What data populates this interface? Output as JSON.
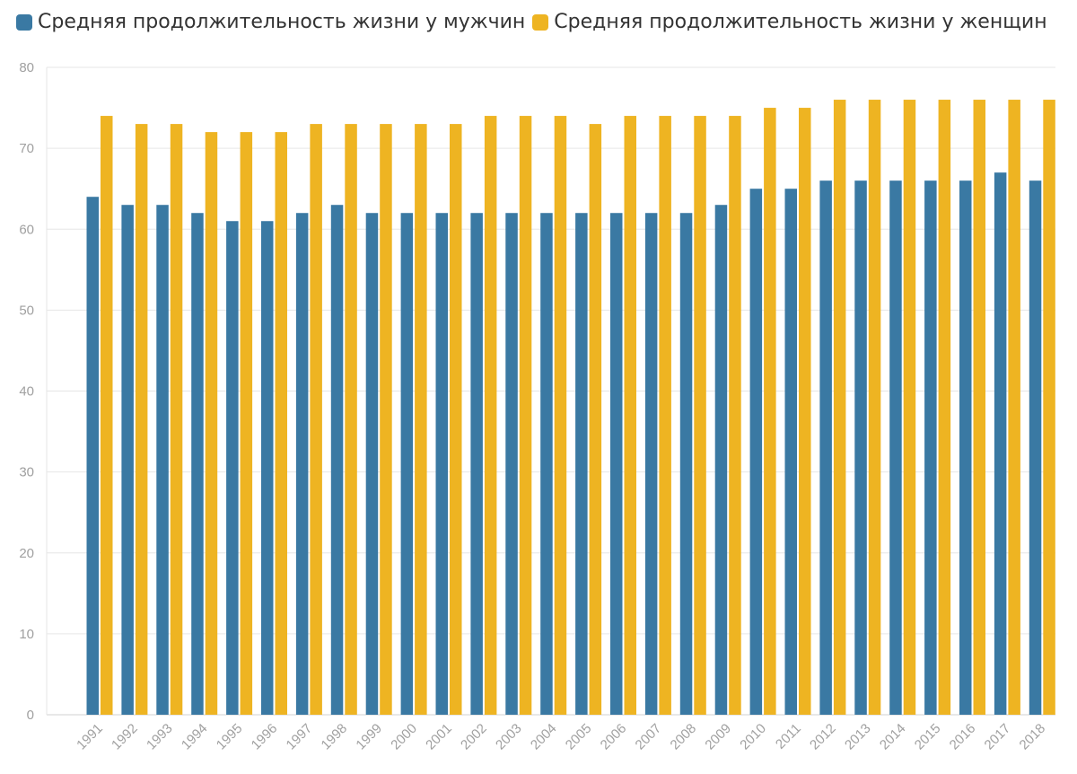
{
  "chart_data": {
    "type": "bar",
    "categories": [
      "1991",
      "1992",
      "1993",
      "1994",
      "1995",
      "1996",
      "1997",
      "1998",
      "1999",
      "2000",
      "2001",
      "2002",
      "2003",
      "2004",
      "2005",
      "2006",
      "2007",
      "2008",
      "2009",
      "2010",
      "2011",
      "2012",
      "2013",
      "2014",
      "2015",
      "2016",
      "2017",
      "2018"
    ],
    "series": [
      {
        "name": "Средняя продолжительность жизни у мужчин",
        "color": "#3a79a3",
        "values": [
          64,
          63,
          63,
          62,
          61,
          61,
          62,
          63,
          62,
          62,
          62,
          62,
          62,
          62,
          62,
          62,
          62,
          62,
          63,
          65,
          65,
          66,
          66,
          66,
          66,
          66,
          67,
          66
        ]
      },
      {
        "name": "Средняя продолжительность жизни у женщин",
        "color": "#eeb422",
        "values": [
          74,
          73,
          73,
          72,
          72,
          72,
          73,
          73,
          73,
          73,
          73,
          74,
          74,
          74,
          73,
          74,
          74,
          74,
          74,
          75,
          75,
          76,
          76,
          76,
          76,
          76,
          76,
          76
        ]
      }
    ],
    "ylim": [
      0,
      80
    ],
    "yticks": [
      "0",
      "10",
      "20",
      "30",
      "40",
      "50",
      "60",
      "70",
      "80"
    ],
    "grid": true,
    "legend": "top-left"
  }
}
